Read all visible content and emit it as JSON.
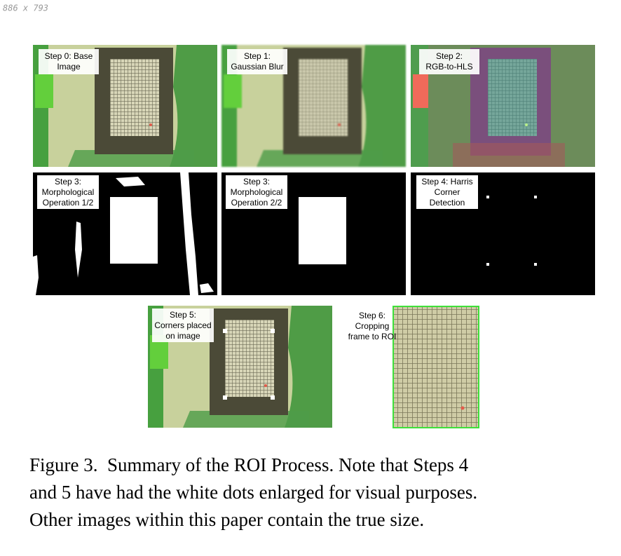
{
  "watermark": "886 x 793",
  "panels": [
    {
      "label": [
        "Step 0: Base",
        "Image"
      ]
    },
    {
      "label": [
        "Step 1:",
        "Gaussian Blur"
      ]
    },
    {
      "label": [
        "Step 2:",
        "RGB-to-HLS"
      ]
    },
    {
      "label": [
        "Step 3:",
        "Morphological",
        "Operation 1/2"
      ]
    },
    {
      "label": [
        "Step 3:",
        "Morphological",
        "Operation 2/2"
      ]
    },
    {
      "label": [
        "Step 4: Harris",
        "Corner",
        "Detection"
      ]
    },
    {
      "label": [
        "Step 5:",
        "Corners placed",
        "on image"
      ]
    },
    {
      "label": [
        "Step 6:",
        "Cropping",
        "frame to ROI"
      ]
    }
  ],
  "caption": [
    "Figure 3.  Summary of the ROI Process. Note that Steps 4",
    "and 5 have had the white dots enlarged for visual purposes.",
    "Other images within this paper contain the true size."
  ]
}
